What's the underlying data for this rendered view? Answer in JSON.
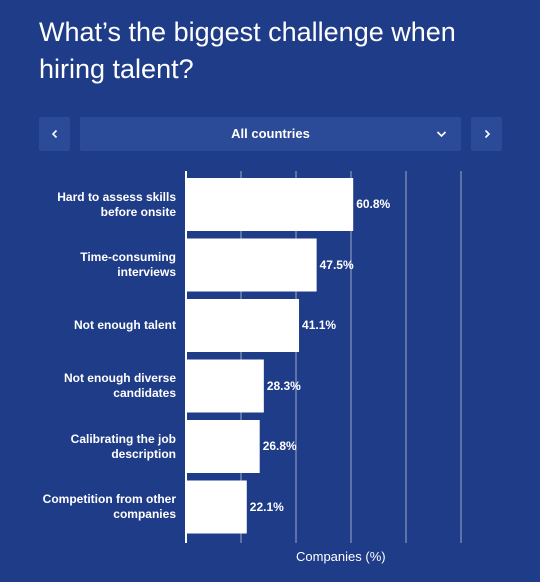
{
  "title": "What’s the biggest challenge when hiring talent?",
  "filter": {
    "selected": "All countries",
    "prev_icon": "chevron-left-icon",
    "next_icon": "chevron-right-icon",
    "dropdown_icon": "chevron-down-icon"
  },
  "colors": {
    "background": "#1f3c88",
    "control": "#2b4a97",
    "bar": "#ffffff",
    "gridline": "#ffffff"
  },
  "chart_data": {
    "type": "bar",
    "orientation": "horizontal",
    "categories": [
      "Hard to assess skills before onsite",
      "Time-consuming interviews",
      "Not enough talent",
      "Not enough diverse candidates",
      "Calibrating the job description",
      "Competition from other companies"
    ],
    "values": [
      60.8,
      47.5,
      41.1,
      28.3,
      26.8,
      22.1
    ],
    "value_labels": [
      "60.8%",
      "47.5%",
      "41.1%",
      "28.3%",
      "26.8%",
      "22.1%"
    ],
    "xlabel": "Companies (%)",
    "xlim": [
      0,
      100
    ],
    "grid": true,
    "gridline_step": 20
  }
}
